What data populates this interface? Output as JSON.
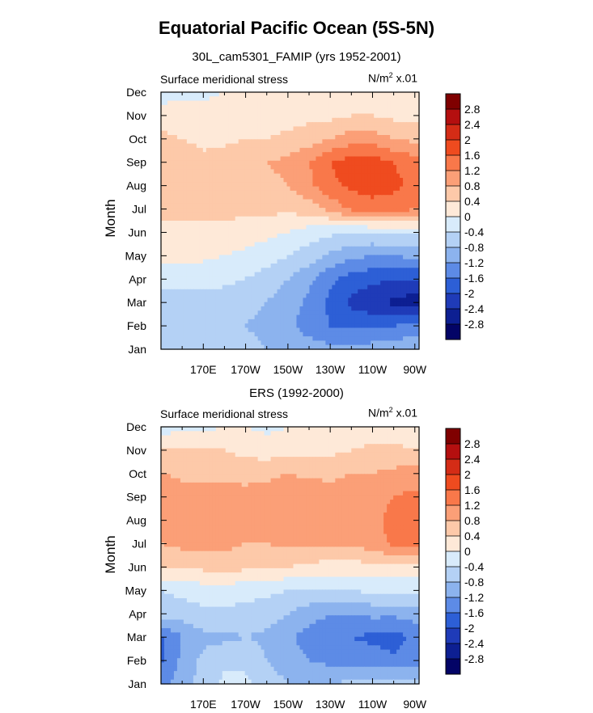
{
  "title": "Equatorial Pacific Ocean (5S-5N)",
  "colorbar_levels": [
    "2.8",
    "2.4",
    "2",
    "1.6",
    "1.2",
    "0.8",
    "0.4",
    "0",
    "-0.4",
    "-0.8",
    "-1.2",
    "-1.6",
    "-2",
    "-2.4",
    "-2.8"
  ],
  "colorbar_colors": [
    "#7f0000",
    "#b40f0f",
    "#d42c16",
    "#ef4b1f",
    "#f9784a",
    "#fb9f77",
    "#fdc9a9",
    "#fee9d8",
    "#d8ebfb",
    "#b4d1f5",
    "#8cb3ee",
    "#5d8be6",
    "#2d5fd6",
    "#1f3bb8",
    "#0d1f92",
    "#030466"
  ],
  "panels": [
    {
      "subtitle": "30L_cam5301_FAMIP (yrs 1952-2001)",
      "left_label": "Surface meridional stress",
      "units_main": "N/m",
      "units_exp": "2",
      "units_tail": " x.01",
      "ylabel": "Month"
    },
    {
      "subtitle": "ERS (1992-2000)",
      "left_label": "Surface meridional stress",
      "units_main": "N/m",
      "units_exp": "2",
      "units_tail": " x.01",
      "ylabel": "Month"
    }
  ],
  "chart_data": [
    {
      "type": "heatmap",
      "subtitle": "30L_cam5301_FAMIP (yrs 1952-2001)",
      "xlabel": "",
      "ylabel": "Month",
      "x_ticklabels": [
        "170E",
        "170W",
        "150W",
        "130W",
        "110W",
        "90W"
      ],
      "x_tick_lons": [
        170,
        190,
        210,
        230,
        250,
        270
      ],
      "xlim": [
        150,
        272
      ],
      "y_ticklabels": [
        "Jan",
        "Feb",
        "Mar",
        "Apr",
        "May",
        "Jun",
        "Jul",
        "Aug",
        "Sep",
        "Oct",
        "Nov",
        "Dec"
      ],
      "x_lons": [
        150,
        160,
        170,
        180,
        190,
        200,
        210,
        220,
        230,
        240,
        250,
        260,
        270
      ],
      "values": [
        [
          -0.6,
          -0.7,
          -0.7,
          -0.7,
          -0.7,
          -0.8,
          -0.9,
          -1.0,
          -1.1,
          -1.1,
          -1.0,
          -0.9,
          -0.9
        ],
        [
          -0.5,
          -0.6,
          -0.6,
          -0.7,
          -0.8,
          -0.9,
          -1.1,
          -1.4,
          -1.6,
          -1.7,
          -1.7,
          -1.6,
          -1.5
        ],
        [
          -0.5,
          -0.5,
          -0.5,
          -0.6,
          -0.7,
          -0.8,
          -1.0,
          -1.3,
          -1.7,
          -2.1,
          -2.3,
          -2.5,
          -2.6
        ],
        [
          -0.3,
          -0.3,
          -0.3,
          -0.3,
          -0.4,
          -0.6,
          -0.8,
          -1.1,
          -1.5,
          -1.8,
          -1.9,
          -2.0,
          -2.0
        ],
        [
          0.2,
          0.2,
          0.1,
          0.0,
          -0.1,
          -0.2,
          -0.4,
          -0.6,
          -0.9,
          -1.1,
          -1.2,
          -1.2,
          -1.1
        ],
        [
          0.3,
          0.3,
          0.3,
          0.3,
          0.2,
          0.1,
          0.0,
          -0.2,
          -0.3,
          -0.4,
          -0.4,
          -0.3,
          -0.3
        ],
        [
          0.5,
          0.5,
          0.5,
          0.5,
          0.5,
          0.5,
          0.5,
          0.6,
          0.9,
          1.3,
          1.4,
          1.4,
          1.2
        ],
        [
          0.7,
          0.6,
          0.6,
          0.6,
          0.6,
          0.7,
          0.8,
          1.1,
          1.5,
          1.7,
          1.8,
          1.7,
          1.5
        ],
        [
          0.8,
          0.7,
          0.5,
          0.6,
          0.7,
          0.8,
          0.9,
          1.2,
          1.6,
          1.8,
          1.8,
          1.6,
          1.4
        ],
        [
          0.5,
          0.4,
          0.3,
          0.3,
          0.4,
          0.4,
          0.5,
          0.6,
          0.8,
          1.0,
          1.0,
          0.8,
          0.7
        ],
        [
          0.2,
          0.2,
          0.2,
          0.2,
          0.2,
          0.2,
          0.2,
          0.3,
          0.3,
          0.4,
          0.4,
          0.3,
          0.3
        ],
        [
          -0.2,
          -0.1,
          -0.1,
          0.0,
          0.0,
          0.1,
          0.1,
          0.1,
          0.1,
          0.1,
          0.1,
          0.1,
          0.0
        ]
      ]
    },
    {
      "type": "heatmap",
      "subtitle": "ERS (1992-2000)",
      "xlabel": "",
      "ylabel": "Month",
      "x_ticklabels": [
        "170E",
        "170W",
        "150W",
        "130W",
        "110W",
        "90W"
      ],
      "x_tick_lons": [
        170,
        190,
        210,
        230,
        250,
        270
      ],
      "xlim": [
        150,
        272
      ],
      "y_ticklabels": [
        "Jan",
        "Feb",
        "Mar",
        "Apr",
        "May",
        "Jun",
        "Jul",
        "Aug",
        "Sep",
        "Oct",
        "Nov",
        "Dec"
      ],
      "x_lons": [
        150,
        160,
        170,
        180,
        190,
        200,
        210,
        220,
        230,
        240,
        250,
        260,
        270
      ],
      "values": [
        [
          -1.3,
          -1.0,
          -0.6,
          -0.3,
          -0.3,
          -0.6,
          -0.8,
          -0.9,
          -0.8,
          -0.7,
          -0.6,
          -0.6,
          -0.7
        ],
        [
          -1.7,
          -1.1,
          -0.7,
          -0.5,
          -0.5,
          -0.8,
          -1.0,
          -1.2,
          -1.3,
          -1.4,
          -1.4,
          -1.5,
          -1.4
        ],
        [
          -1.7,
          -1.2,
          -0.9,
          -0.9,
          -0.8,
          -0.9,
          -1.1,
          -1.4,
          -1.5,
          -1.6,
          -1.7,
          -1.8,
          -1.5
        ],
        [
          -0.6,
          -0.6,
          -0.5,
          -0.5,
          -0.5,
          -0.6,
          -0.8,
          -1.0,
          -1.2,
          -1.2,
          -1.1,
          -1.1,
          -1.0
        ],
        [
          -0.4,
          -0.3,
          -0.2,
          -0.2,
          -0.3,
          -0.3,
          -0.4,
          -0.5,
          -0.4,
          -0.4,
          -0.3,
          -0.3,
          -0.3
        ],
        [
          0.5,
          0.5,
          0.5,
          0.6,
          0.5,
          0.4,
          0.4,
          0.3,
          0.2,
          0.2,
          0.3,
          0.3,
          0.3
        ],
        [
          0.8,
          0.9,
          0.9,
          0.9,
          0.8,
          0.8,
          0.9,
          0.9,
          0.9,
          0.9,
          1.0,
          1.3,
          1.3
        ],
        [
          1.0,
          1.0,
          1.1,
          1.0,
          0.9,
          1.0,
          1.1,
          1.1,
          1.0,
          1.0,
          1.1,
          1.3,
          1.3
        ],
        [
          1.2,
          1.0,
          1.0,
          1.0,
          1.0,
          1.0,
          1.1,
          1.1,
          1.0,
          1.0,
          1.1,
          1.2,
          1.3
        ],
        [
          0.8,
          0.7,
          0.7,
          0.7,
          0.6,
          0.7,
          0.8,
          0.7,
          0.7,
          0.8,
          0.8,
          0.9,
          1.0
        ],
        [
          0.4,
          0.4,
          0.4,
          0.4,
          0.3,
          0.2,
          0.3,
          0.3,
          0.3,
          0.4,
          0.5,
          0.5,
          0.4
        ],
        [
          -0.2,
          -0.1,
          -0.1,
          0.0,
          0.0,
          -0.1,
          0.0,
          0.0,
          0.0,
          0.1,
          0.1,
          0.1,
          0.1
        ]
      ]
    }
  ]
}
